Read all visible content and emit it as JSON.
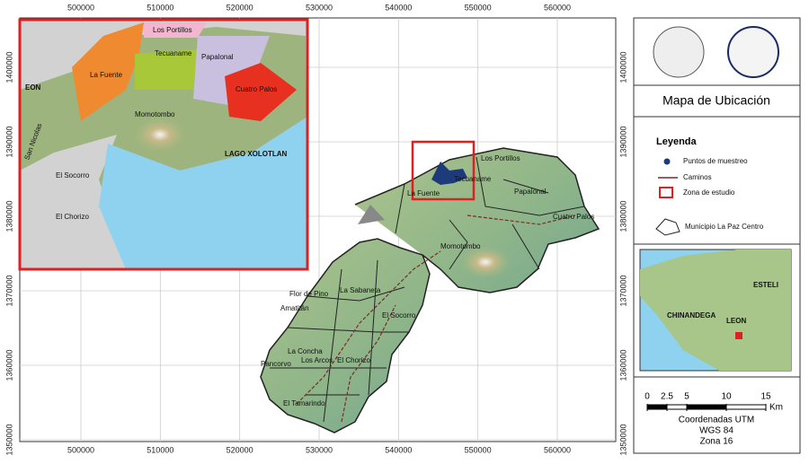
{
  "map": {
    "xlim": [
      492302,
      567359
    ],
    "ylim": [
      1349759,
      1406627
    ],
    "xticks": [
      500000,
      510000,
      520000,
      530000,
      540000,
      550000,
      560000
    ],
    "yticks": [
      1350000,
      1360000,
      1370000,
      1380000,
      1390000,
      1400000
    ],
    "labels": [
      "Los Portillos",
      "Tecuaname",
      "Papalonal",
      "Cuatro Palos",
      "La Fuente",
      "Momotombo",
      "Flor de Pino",
      "La Sabaneta",
      "Amatitán",
      "El Socorro",
      "La Concha",
      "Los Arcos",
      "El Chorizo",
      "Pancorvo",
      "El Tamarindo"
    ]
  },
  "inset": {
    "labels": [
      "Los Portillos",
      "La Fuente",
      "Tecuaname",
      "Papalonal",
      "Cuatro Palos",
      "EON",
      "Momotombo",
      "LAGO XOLOTLAN",
      "El Socorro",
      "El Chorizo",
      "San Nicolas"
    ]
  },
  "title": "Mapa de Ubicación",
  "legend": {
    "title": "Leyenda",
    "items": [
      "Puntos de muestreo",
      "Caminos",
      "Zona de estudio",
      "Municipio La Paz Centro"
    ]
  },
  "overview": {
    "labels": [
      "ESTELI",
      "CHINANDEGA",
      "LEON"
    ]
  },
  "scale": {
    "ticks": [
      0,
      2.5,
      5,
      10,
      15
    ],
    "unit": "Km"
  },
  "coordinates": [
    "Coordenadas UTM",
    "WGS 84",
    "Zona 16"
  ]
}
